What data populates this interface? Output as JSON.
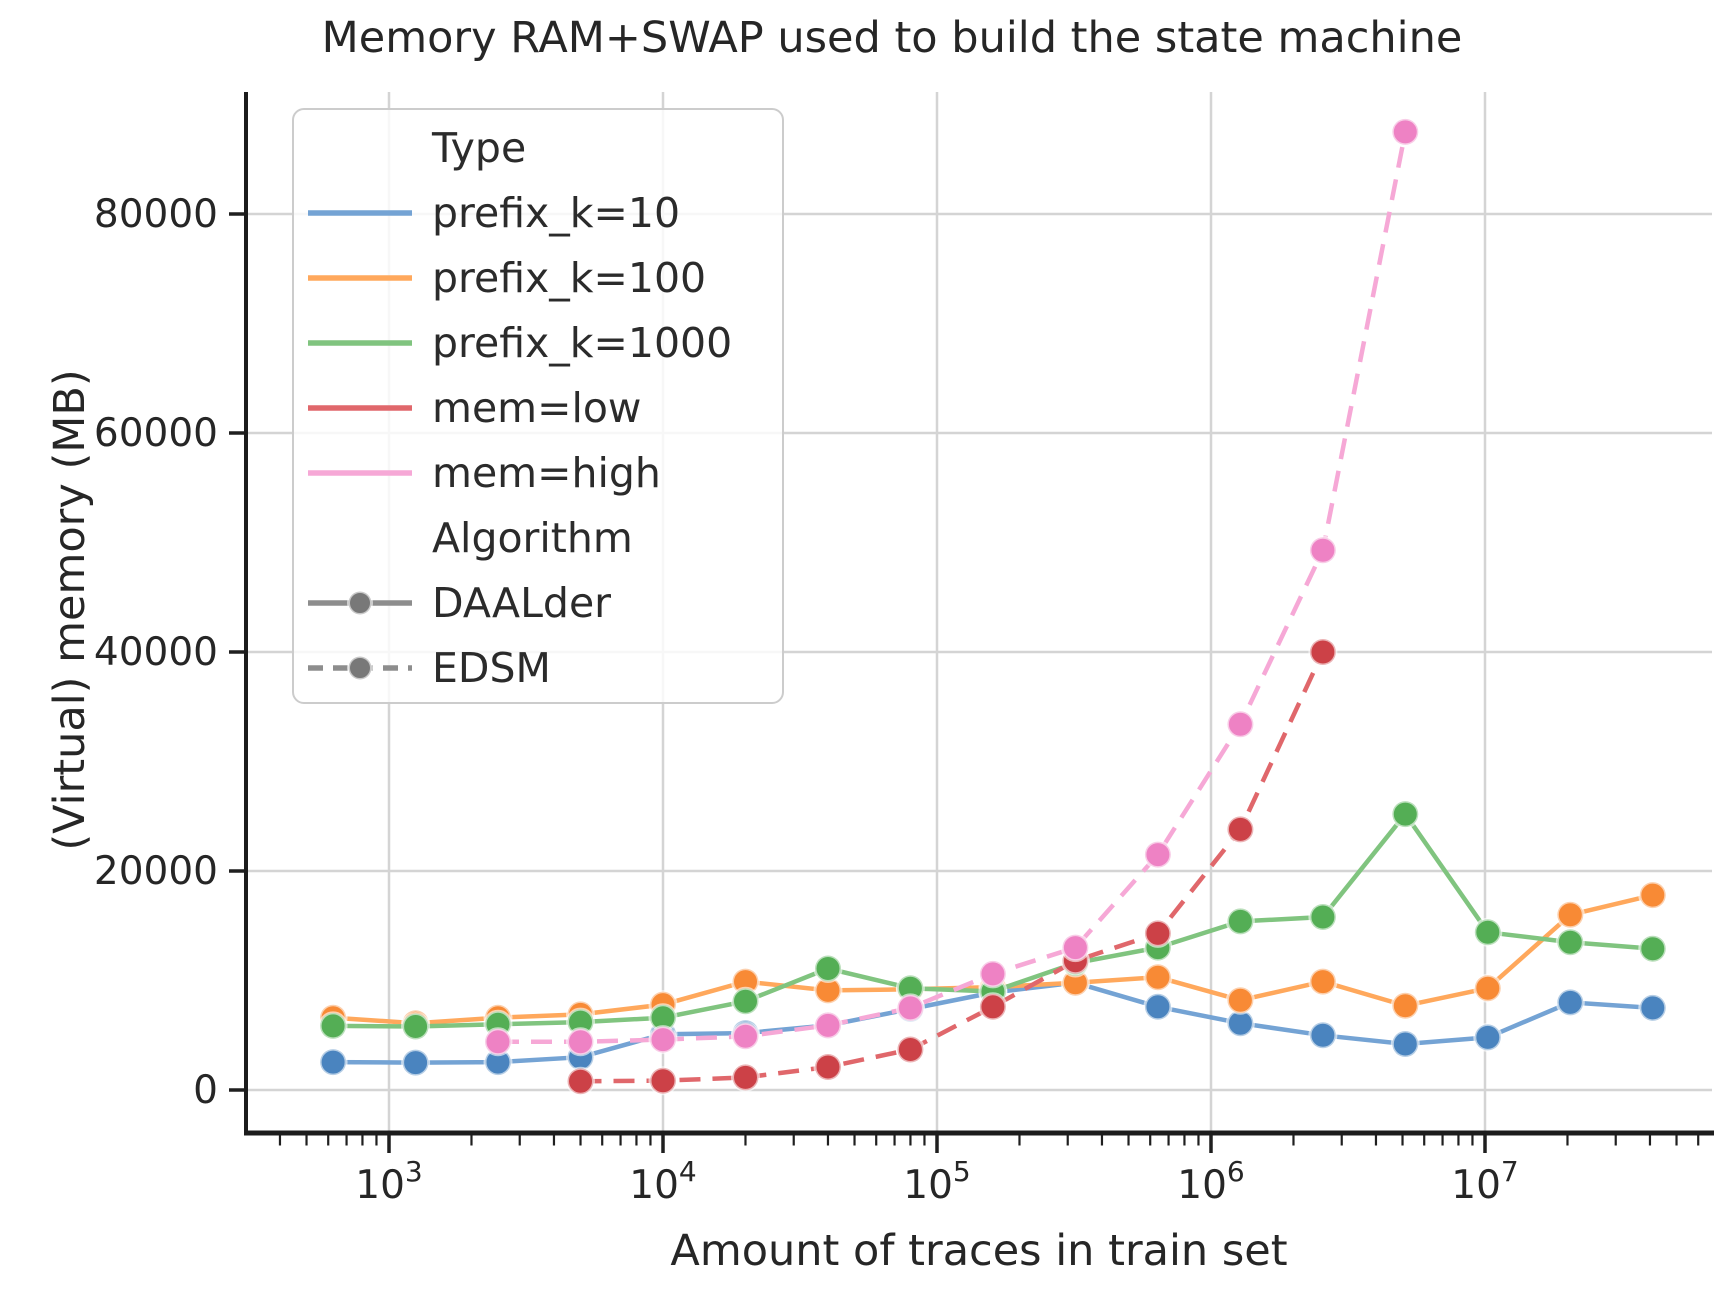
{
  "title": "Memory RAM+SWAP used to build the state machine",
  "x_axis": {
    "label": "Amount of traces in train set",
    "scale": "log",
    "major_ticks": [
      {
        "value": 1000,
        "base": "10",
        "exp": "3"
      },
      {
        "value": 10000,
        "base": "10",
        "exp": "4"
      },
      {
        "value": 100000,
        "base": "10",
        "exp": "5"
      },
      {
        "value": 1000000,
        "base": "10",
        "exp": "6"
      },
      {
        "value": 10000000,
        "base": "10",
        "exp": "7"
      }
    ]
  },
  "y_axis": {
    "label": "(Virtual) memory (MB)",
    "ticks": [
      {
        "value": 0,
        "label": "0"
      },
      {
        "value": 20000,
        "label": "20000"
      },
      {
        "value": 40000,
        "label": "40000"
      },
      {
        "value": 60000,
        "label": "60000"
      },
      {
        "value": 80000,
        "label": "80000"
      }
    ]
  },
  "legend": {
    "sections": [
      {
        "header": "Type",
        "items": [
          {
            "label": "prefix_k=10",
            "color": "#74a3d4",
            "line": "solid",
            "marker": false
          },
          {
            "label": "prefix_k=100",
            "color": "#ffa85c",
            "line": "solid",
            "marker": false
          },
          {
            "label": "prefix_k=1000",
            "color": "#80c47f",
            "line": "solid",
            "marker": false
          },
          {
            "label": "mem=low",
            "color": "#e0676b",
            "line": "solid",
            "marker": false
          },
          {
            "label": "mem=high",
            "color": "#f6a8d6",
            "line": "solid",
            "marker": false
          }
        ]
      },
      {
        "header": "Algorithm",
        "items": [
          {
            "label": "DAALder",
            "color": "#8d8d8d",
            "line": "solid",
            "marker": true
          },
          {
            "label": "EDSM",
            "color": "#8d8d8d",
            "line": "dashed",
            "marker": true
          }
        ]
      }
    ]
  },
  "chart_data": {
    "type": "line",
    "title": "Memory RAM+SWAP used to build the state machine",
    "xlabel": "Amount of traces in train set",
    "ylabel": "(Virtual) memory (MB)",
    "x_scale": "log",
    "xlim": [
      300,
      66000000
    ],
    "ylim": [
      0,
      91000
    ],
    "grid": true,
    "legend_position": "upper left",
    "series": [
      {
        "name": "prefix_k=10",
        "algorithm": "DAALder",
        "line": "solid",
        "color": "#74a3d4",
        "marker_color": "#4a84bf",
        "x": [
          625,
          1250,
          2500,
          5000,
          10000,
          20000,
          40000,
          80000,
          160000,
          320000,
          640000,
          1280000,
          2560000,
          5120000,
          10240000,
          20480000,
          40960000
        ],
        "values": [
          2550,
          2500,
          2550,
          3000,
          5100,
          5200,
          5900,
          7400,
          8900,
          9800,
          7600,
          6100,
          5000,
          4200,
          4800,
          8000,
          7500
        ]
      },
      {
        "name": "prefix_k=100",
        "algorithm": "DAALder",
        "line": "solid",
        "color": "#ffa85c",
        "marker_color": "#f88a35",
        "x": [
          625,
          1250,
          2500,
          5000,
          10000,
          20000,
          40000,
          80000,
          160000,
          320000,
          640000,
          1280000,
          2560000,
          5120000,
          10240000,
          20480000,
          40960000
        ],
        "values": [
          6600,
          6100,
          6600,
          6900,
          7800,
          9900,
          9100,
          9200,
          9400,
          9800,
          10300,
          8200,
          9900,
          7700,
          9300,
          16000,
          17800
        ]
      },
      {
        "name": "prefix_k=1000",
        "algorithm": "DAALder",
        "line": "solid",
        "color": "#80c47f",
        "marker_color": "#54ae55",
        "x": [
          625,
          1250,
          2500,
          5000,
          10000,
          20000,
          40000,
          80000,
          160000,
          320000,
          640000,
          1280000,
          2560000,
          5120000,
          10240000,
          20480000,
          40960000
        ],
        "values": [
          5850,
          5800,
          6000,
          6200,
          6600,
          8100,
          11100,
          9300,
          9000,
          11600,
          13000,
          15400,
          15800,
          25200,
          14400,
          13500,
          12900
        ]
      },
      {
        "name": "mem=low",
        "algorithm": "EDSM",
        "line": "dashed",
        "color": "#e0676b",
        "marker_color": "#cc4147",
        "x": [
          5000,
          10000,
          20000,
          40000,
          80000,
          160000,
          320000,
          640000,
          1280000,
          2560000
        ],
        "values": [
          800,
          850,
          1150,
          2100,
          3700,
          7600,
          11800,
          14300,
          23800,
          40000
        ]
      },
      {
        "name": "mem=high",
        "algorithm": "EDSM",
        "line": "dashed",
        "color": "#f6a8d6",
        "marker_color": "#ee82c4",
        "x": [
          2500,
          5000,
          10000,
          20000,
          40000,
          80000,
          160000,
          320000,
          640000,
          1280000,
          2560000,
          5120000
        ],
        "values": [
          4400,
          4400,
          4600,
          4900,
          5900,
          7500,
          10600,
          13000,
          21500,
          33400,
          49300,
          87500
        ]
      }
    ]
  }
}
